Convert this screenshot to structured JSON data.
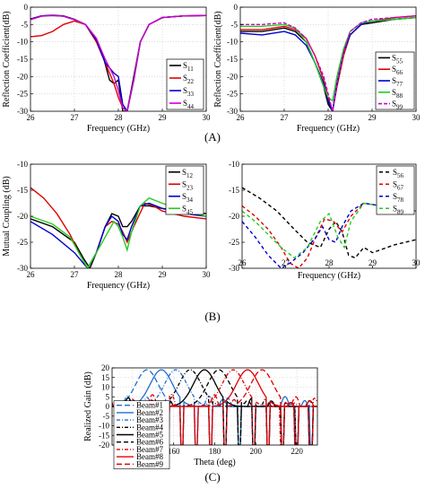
{
  "panel_labels": [
    "(A)",
    "(B)",
    "(C)"
  ],
  "chart_data": [
    {
      "type": "line",
      "xlabel": "Frequency (GHz)",
      "ylabel": "Reflection Coefficient(dB)",
      "xlim": [
        26,
        30
      ],
      "ylim": [
        -30,
        0
      ],
      "xticks": [
        26,
        27,
        28,
        29,
        30
      ],
      "yticks": [
        0,
        -5,
        -10,
        -15,
        -20,
        -25,
        -30
      ],
      "grid": true,
      "legend": "bottom-right",
      "series": [
        {
          "name": "S11",
          "color": "#000000",
          "dash": "",
          "x": [
            26,
            26.25,
            26.5,
            26.75,
            27,
            27.25,
            27.5,
            27.65,
            27.8,
            27.9,
            28,
            28.1,
            28.2,
            28.35,
            28.5,
            28.7,
            29,
            29.5,
            30
          ],
          "y": [
            -3.4,
            -2.5,
            -2.3,
            -2.5,
            -3.5,
            -5,
            -9,
            -14,
            -21,
            -22,
            -21,
            -30,
            -30,
            -20,
            -10,
            -5,
            -3,
            -2.5,
            -2.4
          ]
        },
        {
          "name": "S22",
          "color": "#e00000",
          "dash": "",
          "x": [
            26,
            26.25,
            26.5,
            26.75,
            27,
            27.25,
            27.5,
            27.7,
            27.9,
            28,
            28.1,
            28.2,
            28.35,
            28.5,
            28.7,
            29,
            29.5,
            30
          ],
          "y": [
            -8.5,
            -8.2,
            -7,
            -5,
            -4,
            -5,
            -10,
            -16,
            -22,
            -26,
            -29,
            -30,
            -21,
            -10,
            -5,
            -3,
            -2.5,
            -2.4
          ]
        },
        {
          "name": "S33",
          "color": "#0000cc",
          "dash": "",
          "x": [
            26,
            26.25,
            26.5,
            26.75,
            27,
            27.25,
            27.5,
            27.7,
            27.9,
            28,
            28.1,
            28.2,
            28.35,
            28.5,
            28.7,
            29,
            29.5,
            30
          ],
          "y": [
            -3.5,
            -2.5,
            -2.4,
            -2.6,
            -3.6,
            -5,
            -9.5,
            -16,
            -19,
            -20,
            -28,
            -30,
            -21,
            -10,
            -5,
            -3,
            -2.5,
            -2.4
          ]
        },
        {
          "name": "S44",
          "color": "#cc00cc",
          "dash": "",
          "x": [
            26,
            26.25,
            26.5,
            26.75,
            27,
            27.25,
            27.5,
            27.7,
            27.9,
            28,
            28.1,
            28.2,
            28.35,
            28.5,
            28.7,
            29,
            29.5,
            30
          ],
          "y": [
            -3.6,
            -2.6,
            -2.4,
            -2.6,
            -3.6,
            -5,
            -9,
            -15,
            -20,
            -24,
            -29,
            -30,
            -21,
            -10,
            -5,
            -3,
            -2.5,
            -2.4
          ]
        }
      ]
    },
    {
      "type": "line",
      "xlabel": "Frequency (GHz)",
      "ylabel": "Reflection Coefficient(dB)",
      "xlim": [
        26,
        30
      ],
      "ylim": [
        -30,
        0
      ],
      "xticks": [
        26,
        27,
        28,
        29,
        30
      ],
      "yticks": [
        0,
        -5,
        -10,
        -15,
        -20,
        -25,
        -30
      ],
      "grid": true,
      "legend": "bottom-right",
      "series": [
        {
          "name": "S55",
          "color": "#000000",
          "dash": "",
          "x": [
            26,
            26.5,
            27,
            27.25,
            27.5,
            27.7,
            27.9,
            28,
            28.1,
            28.2,
            28.35,
            28.5,
            28.75,
            29,
            29.5,
            30
          ],
          "y": [
            -7,
            -7,
            -6,
            -7,
            -10,
            -16,
            -23,
            -28,
            -30,
            -22,
            -13,
            -8,
            -5,
            -4.5,
            -3.5,
            -3
          ]
        },
        {
          "name": "S66",
          "color": "#e00000",
          "dash": "",
          "x": [
            26,
            26.5,
            27,
            27.25,
            27.5,
            27.7,
            27.9,
            28,
            28.1,
            28.2,
            28.35,
            28.5,
            28.75,
            29,
            29.5,
            30
          ],
          "y": [
            -6.5,
            -6.5,
            -5.5,
            -6.5,
            -9,
            -14,
            -21,
            -26,
            -30,
            -23,
            -14,
            -8,
            -5,
            -4,
            -3,
            -2.5
          ]
        },
        {
          "name": "S77",
          "color": "#0000cc",
          "dash": "",
          "x": [
            26,
            26.5,
            27,
            27.25,
            27.5,
            27.7,
            27.9,
            28,
            28.1,
            28.2,
            28.35,
            28.5,
            28.75,
            29,
            29.5,
            30
          ],
          "y": [
            -7.5,
            -8,
            -7,
            -8,
            -11,
            -16,
            -22,
            -27,
            -30,
            -22,
            -13,
            -8,
            -5,
            -4,
            -3.5,
            -3
          ]
        },
        {
          "name": "S88",
          "color": "#22cc22",
          "dash": "",
          "x": [
            26,
            26.5,
            27,
            27.25,
            27.5,
            27.7,
            27.9,
            28,
            28.1,
            28.2,
            28.35,
            28.5,
            28.75,
            29,
            29.5,
            30
          ],
          "y": [
            -5.5,
            -5.5,
            -5,
            -6,
            -10,
            -16,
            -23,
            -26,
            -27,
            -20,
            -12,
            -7,
            -4.5,
            -4,
            -3.5,
            -3
          ]
        },
        {
          "name": "S99",
          "color": "#cc00cc",
          "dash": "4,2",
          "x": [
            26,
            26.5,
            27,
            27.25,
            27.5,
            27.7,
            27.9,
            28,
            28.1,
            28.2,
            28.35,
            28.5,
            28.75,
            29,
            29.5,
            30
          ],
          "y": [
            -5,
            -5,
            -4.5,
            -6,
            -9,
            -14,
            -20,
            -25,
            -30,
            -22,
            -13,
            -7,
            -4.5,
            -3.5,
            -3,
            -2.5
          ]
        }
      ]
    },
    {
      "type": "line",
      "xlabel": "Frequency (GHz)",
      "ylabel": "Mutual Coupling (dB)",
      "xlim": [
        26,
        30
      ],
      "ylim": [
        -30,
        -10
      ],
      "xticks": [
        26,
        27,
        28,
        29,
        30
      ],
      "yticks": [
        -10,
        -15,
        -20,
        -25,
        -30
      ],
      "grid": false,
      "legend": "top-right",
      "series": [
        {
          "name": "S12",
          "color": "#000000",
          "dash": "",
          "x": [
            26,
            26.5,
            27,
            27.2,
            27.35,
            27.5,
            27.7,
            27.85,
            28,
            28.1,
            28.2,
            28.3,
            28.5,
            28.7,
            29,
            29.5,
            30
          ],
          "y": [
            -20.5,
            -22,
            -25,
            -28,
            -30,
            -27,
            -22,
            -19.5,
            -20,
            -22,
            -22,
            -21,
            -18,
            -18,
            -18.5,
            -19,
            -19.5
          ]
        },
        {
          "name": "S23",
          "color": "#e00000",
          "dash": "",
          "x": [
            26,
            26.3,
            26.6,
            26.9,
            27.1,
            27.3,
            27.5,
            27.7,
            27.85,
            28,
            28.1,
            28.2,
            28.35,
            28.6,
            28.8,
            29,
            29.5,
            30
          ],
          "y": [
            -14.5,
            -16.5,
            -19.5,
            -23.5,
            -27,
            -30,
            -27,
            -22,
            -21,
            -21.5,
            -23,
            -25,
            -22,
            -17.5,
            -18,
            -19,
            -20,
            -20.5
          ]
        },
        {
          "name": "S34",
          "color": "#0000cc",
          "dash": "",
          "x": [
            26,
            26.5,
            27,
            27.3,
            27.5,
            27.7,
            27.85,
            28,
            28.1,
            28.2,
            28.3,
            28.5,
            28.7,
            29,
            29.5,
            30
          ],
          "y": [
            -21,
            -23.5,
            -27,
            -30,
            -27,
            -22,
            -20,
            -21,
            -23.5,
            -24.5,
            -22,
            -18,
            -17.5,
            -18.5,
            -19.5,
            -20
          ]
        },
        {
          "name": "S45",
          "color": "#22cc22",
          "dash": "",
          "x": [
            26,
            26.5,
            26.9,
            27.1,
            27.3,
            27.5,
            27.7,
            27.9,
            28,
            28.1,
            28.2,
            28.3,
            28.5,
            28.7,
            29,
            29.5,
            30
          ],
          "y": [
            -20,
            -21.5,
            -24,
            -27,
            -30,
            -27,
            -24,
            -21,
            -22,
            -24,
            -26.5,
            -23,
            -18,
            -16.5,
            -17.5,
            -19,
            -20
          ]
        }
      ]
    },
    {
      "type": "line",
      "xlabel": "Frequency (GHz)",
      "ylabel": "",
      "xlim": [
        26,
        30
      ],
      "ylim": [
        -30,
        -10
      ],
      "xticks": [
        26,
        27,
        28,
        29,
        30
      ],
      "yticks": [
        -10,
        -15,
        -20,
        -25,
        -30
      ],
      "grid": false,
      "legend": "top-right",
      "series": [
        {
          "name": "S56",
          "color": "#000000",
          "dash": "4,3",
          "x": [
            26,
            26.4,
            26.8,
            27.2,
            27.5,
            27.8,
            28,
            28.15,
            28.3,
            28.45,
            28.6,
            28.8,
            29,
            29.5,
            30
          ],
          "y": [
            -14.5,
            -16.5,
            -19,
            -22.5,
            -25,
            -26,
            -22.5,
            -21,
            -23,
            -27.5,
            -28,
            -26,
            -27,
            -25.5,
            -24.5
          ]
        },
        {
          "name": "S67",
          "color": "#e00000",
          "dash": "4,3",
          "x": [
            26,
            26.3,
            26.6,
            26.9,
            27.1,
            27.3,
            27.5,
            27.7,
            27.9,
            28.1,
            28.3,
            28.5,
            28.8,
            29.2,
            29.6,
            30
          ],
          "y": [
            -18,
            -20,
            -22.5,
            -26,
            -29,
            -30,
            -28,
            -24,
            -20.5,
            -21,
            -23,
            -20,
            -17.5,
            -18,
            -18.5,
            -19
          ]
        },
        {
          "name": "S78",
          "color": "#0000cc",
          "dash": "4,3",
          "x": [
            26,
            26.3,
            26.6,
            26.9,
            27.1,
            27.4,
            27.7,
            27.85,
            28,
            28.15,
            28.3,
            28.5,
            28.8,
            29.2,
            29.6,
            30
          ],
          "y": [
            -21,
            -24,
            -27.5,
            -30,
            -29,
            -27,
            -24,
            -22,
            -24.5,
            -25,
            -22,
            -19,
            -17.5,
            -18,
            -18.5,
            -19
          ]
        },
        {
          "name": "S89",
          "color": "#22cc22",
          "dash": "4,3",
          "x": [
            26,
            26.3,
            26.6,
            26.9,
            27.2,
            27.5,
            27.8,
            28,
            28.2,
            28.35,
            28.5,
            28.8,
            29.2,
            29.6,
            30
          ],
          "y": [
            -19,
            -21,
            -23.5,
            -26,
            -28,
            -26,
            -21,
            -19.5,
            -24,
            -26,
            -21,
            -17.5,
            -18,
            -18.5,
            -19
          ]
        }
      ]
    },
    {
      "type": "line",
      "xlabel": "Theta (deg)",
      "ylabel": "Realized Gain (dB)",
      "xlim": [
        130,
        230
      ],
      "ylim": [
        -20,
        20
      ],
      "xticks": [
        140,
        160,
        180,
        200,
        220
      ],
      "yticks": [
        20,
        15,
        10,
        5,
        0,
        -5,
        -10,
        -15,
        -20
      ],
      "grid": true,
      "legend": "bottom-left",
      "series": [
        {
          "name": "Beam#1",
          "color": "#1f6fd0",
          "dash": "6,3",
          "peak": 147
        },
        {
          "name": "Beam#2",
          "color": "#1f6fd0",
          "dash": "",
          "peak": 154
        },
        {
          "name": "Beam#3",
          "color": "#1f6fd0",
          "dash": "4,2,1,2",
          "peak": 161
        },
        {
          "name": "Beam#4",
          "color": "#000000",
          "dash": "4,2,1,2",
          "peak": 168
        },
        {
          "name": "Beam#5",
          "color": "#000000",
          "dash": "",
          "peak": 175
        },
        {
          "name": "Beam#6",
          "color": "#000000",
          "dash": "5,3",
          "peak": 182
        },
        {
          "name": "Beam#7",
          "color": "#e00000",
          "dash": "4,2,1,2",
          "peak": 189
        },
        {
          "name": "Beam#8",
          "color": "#e00000",
          "dash": "",
          "peak": 196
        },
        {
          "name": "Beam#9",
          "color": "#e00000",
          "dash": "6,3",
          "peak": 203
        }
      ]
    }
  ]
}
